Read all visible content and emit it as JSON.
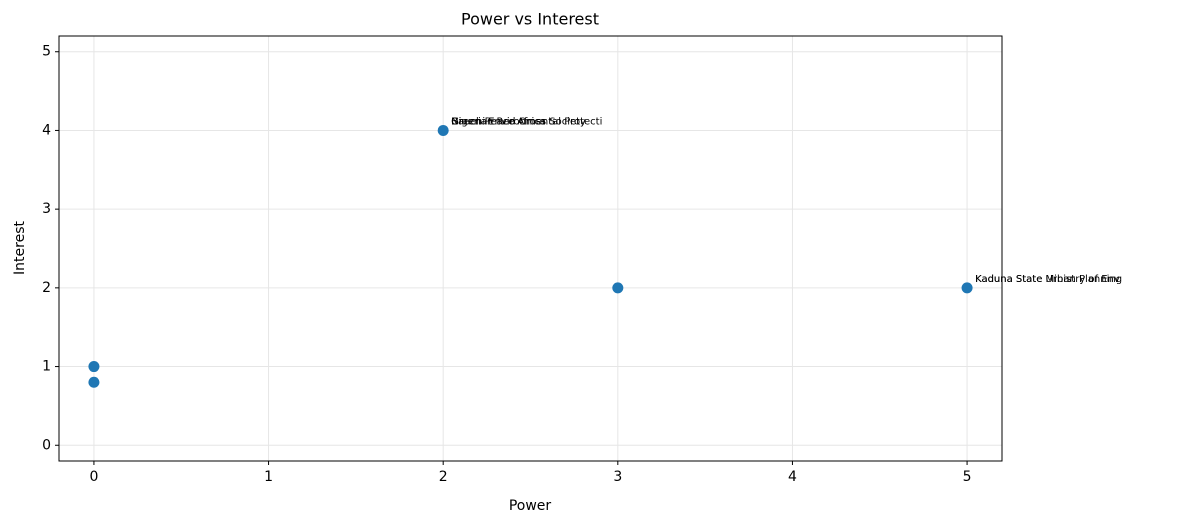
{
  "chart_data": {
    "type": "scatter",
    "title": "Power vs Interest",
    "x_label": "Power",
    "y_label": "Interest",
    "series": [
      {
        "color": "#1f77b4",
        "x": [
          0,
          0,
          2,
          3,
          5
        ],
        "values": [
          1,
          0.8,
          4,
          2,
          2
        ]
      }
    ],
    "annotations": [
      {
        "text": "Nigerian Red Cross Society",
        "x": 2,
        "y": 4
      },
      {
        "text": "Green Peace Africa",
        "x": 2,
        "y": 4
      },
      {
        "text": "Bauchi Environmental Protecti",
        "x": 2,
        "y": 4
      },
      {
        "text": "Kaduna State Urban Planning",
        "x": 5,
        "y": 2
      },
      {
        "text": "Kaduna State Ministry of Env",
        "x": 5,
        "y": 2
      }
    ],
    "xlim": [
      -0.2,
      5.2
    ],
    "ylim": [
      -0.2,
      5.2
    ],
    "xticks": [
      0,
      1,
      2,
      3,
      4,
      5
    ],
    "yticks": [
      0,
      1,
      2,
      3,
      4,
      5
    ],
    "grid": true
  }
}
